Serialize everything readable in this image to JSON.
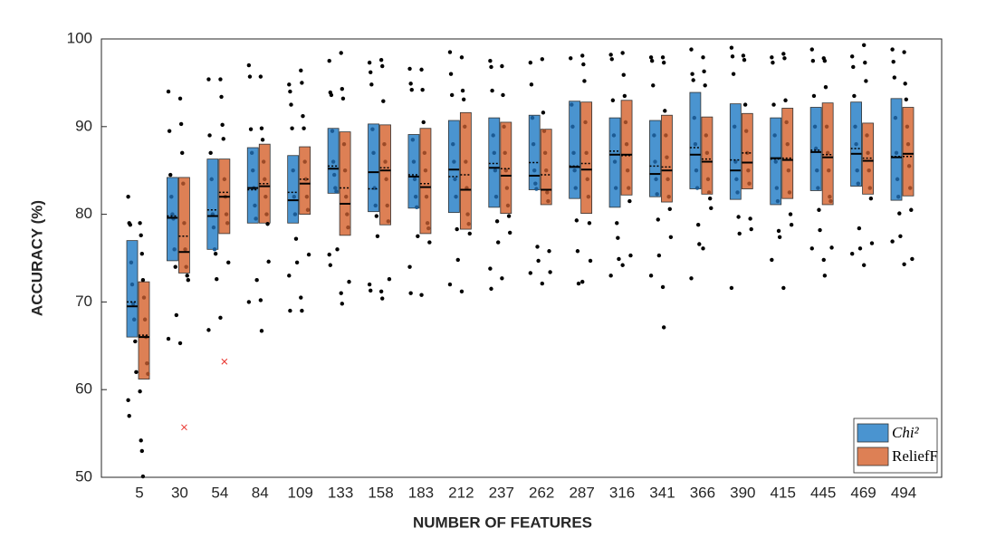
{
  "chart_data": {
    "type": "box",
    "x_label": "NUMBER OF FEATURES",
    "y_label": "ACCURACY (%)",
    "categories": [
      "5",
      "30",
      "54",
      "84",
      "109",
      "133",
      "158",
      "183",
      "212",
      "237",
      "262",
      "287",
      "316",
      "341",
      "366",
      "390",
      "415",
      "445",
      "469",
      "494"
    ],
    "ylim": [
      50,
      100
    ],
    "yticks": [
      50,
      60,
      70,
      80,
      90,
      100
    ],
    "legend": "lower right",
    "series": [
      {
        "name": "Chi²",
        "color": "#4a94d0",
        "dot_color": "#1c5b94",
        "q1": [
          66,
          74.7,
          76,
          79,
          79,
          82.4,
          80.3,
          80.7,
          80.2,
          80.8,
          82.8,
          81.8,
          80.8,
          82,
          82.9,
          81.7,
          81.1,
          82.7,
          83.2,
          81.6
        ],
        "q3": [
          77,
          84.2,
          86.3,
          87.6,
          86.7,
          89.8,
          90.3,
          89.1,
          90.7,
          91,
          91.3,
          92.9,
          91,
          90.7,
          93.9,
          92.6,
          91,
          92.2,
          92.8,
          93.2
        ],
        "median": [
          69.5,
          79.6,
          79.8,
          83,
          81.6,
          85.2,
          84.8,
          84.3,
          85.1,
          85.3,
          84.4,
          85.4,
          86.8,
          84.6,
          86.8,
          85,
          86.4,
          87.1,
          86.9,
          86.5
        ],
        "mean": [
          70,
          79.8,
          80.5,
          82.8,
          82.5,
          85.5,
          82.9,
          84.5,
          84.3,
          85.8,
          85.9,
          85.5,
          87.2,
          85.5,
          87.6,
          86.2,
          86.3,
          87.3,
          87.5,
          86.6
        ],
        "points": [
          [
            82,
            79,
            78.8,
            74.5,
            72,
            69.8,
            68,
            65.5,
            62,
            58.8,
            57
          ],
          [
            94,
            89.5,
            84.5,
            82,
            80,
            79.5,
            76,
            74,
            68.5,
            65.8
          ],
          [
            95.4,
            89,
            87,
            84,
            80,
            78.5,
            76,
            75.5,
            72.6,
            66.8
          ],
          [
            97,
            95.7,
            89.7,
            87,
            85,
            83,
            81,
            79.5,
            72.5,
            70
          ],
          [
            94.8,
            94,
            92.5,
            89.8,
            85,
            82,
            80,
            77.2,
            74.5,
            73,
            69
          ],
          [
            97.5,
            93.9,
            93.6,
            89.5,
            86,
            84.5,
            83,
            82.6,
            76,
            75.4,
            74.2
          ],
          [
            97.3,
            96.2,
            94.8,
            89.7,
            87,
            83,
            81,
            79.8,
            77.5,
            72,
            71.3
          ],
          [
            96.6,
            94.9,
            94.2,
            88.5,
            86,
            84,
            82,
            80.8,
            77.5,
            74,
            71
          ],
          [
            98.5,
            96,
            93.6,
            88,
            86,
            84,
            82,
            78.3,
            74.8,
            72
          ],
          [
            97.5,
            96.8,
            94.1,
            89,
            87,
            85,
            82,
            79.2,
            76.8,
            73.8,
            71.5
          ],
          [
            97.3,
            94.8,
            91,
            88,
            85,
            83.5,
            82.9,
            76.3,
            74.7,
            73.3
          ],
          [
            97.8,
            92.5,
            90,
            87,
            85,
            83,
            79.3,
            75.8,
            72.1
          ],
          [
            98.2,
            97.7,
            93,
            89,
            86,
            83,
            79,
            77.3,
            74.9,
            73
          ],
          [
            97.9,
            97.5,
            94.7,
            89,
            86,
            84,
            82.3,
            79.4,
            75.3,
            73
          ],
          [
            98.8,
            96,
            95.3,
            91,
            88,
            85,
            83,
            78.8,
            76.6,
            72.7
          ],
          [
            99,
            98,
            96,
            90,
            86,
            84,
            82.5,
            79.7,
            77.8,
            71.6
          ],
          [
            97.9,
            97.3,
            92.5,
            89,
            86,
            83,
            81.5,
            78.1,
            77.4,
            74.8
          ],
          [
            98.8,
            97.5,
            93.5,
            90,
            87.5,
            85,
            83,
            80.5,
            78.2,
            76.1
          ],
          [
            98,
            96.8,
            93.5,
            90,
            88,
            85,
            83.5,
            78.4,
            76.1,
            75.5
          ],
          [
            98.8,
            97.4,
            95.6,
            91,
            87,
            84,
            82,
            80.1,
            77.5,
            76.9
          ]
        ],
        "outliers": [
          [],
          [],
          [],
          [],
          [],
          [],
          [],
          [],
          [],
          [],
          [],
          [],
          [],
          [],
          [],
          [],
          [],
          [],
          [],
          []
        ]
      },
      {
        "name": "ReliefF",
        "color": "#dd8055",
        "dot_color": "#9c4a27",
        "q1": [
          61.2,
          73.3,
          77.8,
          79,
          80,
          77.6,
          78.8,
          77.8,
          78.3,
          80.1,
          81.1,
          80.1,
          82.2,
          81.4,
          82.3,
          82.9,
          81.8,
          81.1,
          82.3,
          82.1
        ],
        "q3": [
          72.3,
          84.2,
          86.3,
          88,
          87.7,
          89.4,
          90.2,
          89.8,
          91.6,
          90.5,
          89.7,
          92.8,
          93,
          91.3,
          91.1,
          91.5,
          92.1,
          92.7,
          90.4,
          92.2
        ],
        "median": [
          66,
          75.7,
          82,
          83.2,
          83.5,
          81.2,
          85,
          83.1,
          82.8,
          84.4,
          82.8,
          85.1,
          86.8,
          85,
          86,
          85.9,
          86.2,
          86.5,
          86.1,
          86.9
        ],
        "mean": [
          66.2,
          77.5,
          82.5,
          83.5,
          84,
          83,
          85.3,
          83.5,
          84.5,
          85.2,
          84.5,
          85.8,
          86.7,
          85.4,
          86.3,
          87,
          86.4,
          86.8,
          86.4,
          86.6
        ],
        "points": [
          [
            79,
            77.6,
            75.5,
            72.5,
            70.5,
            68,
            66,
            63,
            61.8,
            59.8,
            54.2,
            53,
            50.1
          ],
          [
            93.2,
            90.3,
            87,
            83.5,
            79,
            76,
            74,
            73,
            72.5,
            65.3
          ],
          [
            95.4,
            93.4,
            90.2,
            88.6,
            84,
            82,
            80,
            79,
            74.5,
            68.2
          ],
          [
            95.7,
            89.8,
            88.5,
            86,
            84,
            82,
            80,
            78.9,
            74.6,
            70.2,
            66.7
          ],
          [
            96.4,
            95,
            91.2,
            89.8,
            86,
            84,
            82,
            80.5,
            75.4,
            70.5,
            69
          ],
          [
            98.4,
            94.3,
            93.2,
            88,
            85,
            82,
            80,
            78.5,
            72.3,
            71,
            69.8
          ],
          [
            97.6,
            96.9,
            92.9,
            88,
            86,
            84,
            81,
            79.2,
            72.6,
            71.2,
            70.4
          ],
          [
            96.5,
            94.2,
            90.5,
            87,
            85,
            82,
            79,
            78.4,
            76.8,
            70.8
          ],
          [
            97.9,
            94.1,
            93.1,
            90,
            86,
            83,
            80,
            78.9,
            77.8,
            71.2
          ],
          [
            96.9,
            93.6,
            90,
            87,
            85,
            83,
            81,
            79.8,
            77.9,
            72.7
          ],
          [
            97.7,
            91.6,
            89.5,
            87,
            85,
            82.5,
            81.5,
            75.8,
            73.4,
            72.1
          ],
          [
            98.1,
            97.1,
            95.2,
            90.5,
            87,
            84,
            82,
            79,
            74.7,
            72.3
          ],
          [
            98.4,
            95.9,
            93.5,
            90.5,
            88,
            85,
            83,
            81.5,
            75.3,
            74.2
          ],
          [
            97.9,
            97.3,
            91.8,
            89,
            86.5,
            84,
            82,
            80.6,
            77.4,
            71.7,
            67.1
          ],
          [
            97.9,
            96.3,
            94.7,
            89,
            87,
            84,
            82.5,
            81.8,
            80.7,
            76.1
          ],
          [
            98.1,
            97.6,
            92.5,
            89.5,
            87,
            85,
            83.5,
            79.5,
            78.3
          ],
          [
            98.3,
            97.8,
            93,
            90.5,
            88,
            85,
            82.5,
            80,
            78.8,
            71.6
          ],
          [
            97.8,
            97.5,
            94.5,
            90,
            87,
            85,
            82,
            81.5,
            76.2,
            74.8,
            73
          ],
          [
            99.3,
            97.3,
            95.2,
            89,
            87,
            85,
            83,
            81.8,
            76.7,
            74.2
          ],
          [
            98.5,
            94.9,
            93.1,
            90,
            88,
            85.5,
            83,
            80.5,
            74.9,
            74.3
          ]
        ],
        "outliers": [
          [],
          [
            55.7
          ],
          [
            63.2
          ],
          [],
          [],
          [],
          [],
          [],
          [],
          [],
          [],
          [],
          [],
          [],
          [],
          [],
          [],
          [],
          [],
          []
        ]
      }
    ]
  }
}
